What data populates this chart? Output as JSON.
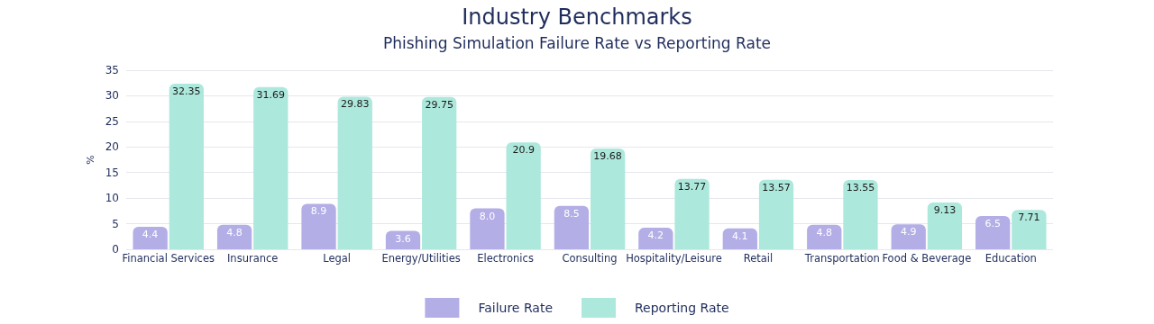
{
  "chart_data": {
    "type": "bar",
    "title": "Industry Benchmarks",
    "subtitle": "Phishing Simulation Failure Rate vs Reporting Rate",
    "ylabel": "%",
    "categories": [
      "Financial Services",
      "Insurance",
      "Legal",
      "Energy/Utilities",
      "Electronics",
      "Consulting",
      "Hospitality/Leisure",
      "Retail",
      "Transportation",
      "Food & Beverage",
      "Education"
    ],
    "series": [
      {
        "name": "Failure Rate",
        "color": "#b3aee6",
        "values": [
          4.4,
          4.8,
          8.9,
          3.6,
          8.0,
          8.5,
          4.2,
          4.1,
          4.8,
          4.9,
          6.5
        ],
        "value_labels": [
          "4.4",
          "4.8",
          "8.9",
          "3.6",
          "8.0",
          "8.5",
          "4.2",
          "4.1",
          "4.8",
          "4.9",
          "6.5"
        ]
      },
      {
        "name": "Reporting Rate",
        "color": "#ade8dc",
        "values": [
          32.35,
          31.69,
          29.83,
          29.75,
          20.9,
          19.68,
          13.77,
          13.57,
          13.55,
          9.13,
          7.71
        ],
        "value_labels": [
          "32.35",
          "31.69",
          "29.83",
          "29.75",
          "20.9",
          "19.68",
          "13.77",
          "13.57",
          "13.55",
          "9.13",
          "7.71"
        ]
      }
    ],
    "ylim": [
      0,
      35
    ],
    "yticks": [
      0,
      5,
      10,
      15,
      20,
      25,
      30,
      35
    ],
    "grid": "y",
    "legend": "bottom"
  }
}
